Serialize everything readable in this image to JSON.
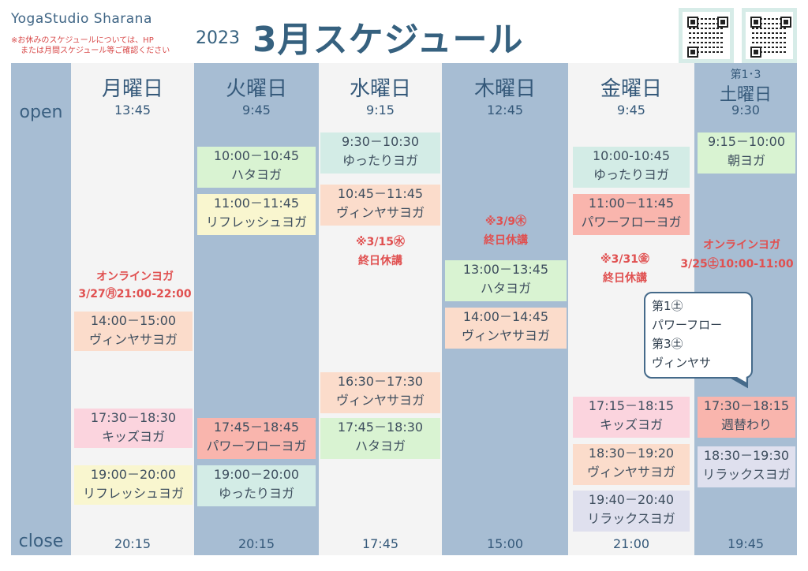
{
  "header": {
    "brand": "YogaStudio Sharana",
    "note1": "※お休みのスケジュールについては、HP",
    "note2": "または月間スケジュール等ご確認ください",
    "year": "2023",
    "title": "3月スケジュール"
  },
  "side": {
    "open": "open",
    "close": "close"
  },
  "colors": {
    "blue_col": "#a7bdd3",
    "light_col": "#f4f4f4",
    "green": "#d9f3d2",
    "mint": "#d3ece6",
    "peach": "#fbdccb",
    "pink": "#fbd4de",
    "yellow": "#f9f6cf",
    "salmon": "#f9b5ad",
    "lilac": "#dfe0ee",
    "accent_red": "#e05050",
    "title_blue": "#36617f"
  },
  "days": {
    "mon": {
      "name": "月曜日",
      "open": "13:45",
      "close": "20:15"
    },
    "tue": {
      "name": "火曜日",
      "open": "9:45",
      "close": "20:15"
    },
    "wed": {
      "name": "水曜日",
      "open": "9:15",
      "close": "17:45"
    },
    "thu": {
      "name": "木曜日",
      "open": "12:45",
      "close": "15:00"
    },
    "fri": {
      "name": "金曜日",
      "open": "9:45",
      "close": "21:00"
    },
    "sat": {
      "prefix": "第1･3",
      "name": "土曜日",
      "open": "9:30",
      "close": "19:45"
    }
  },
  "classes": {
    "mon1": {
      "time": "14:00－15:00",
      "name": "ヴィンヤサヨガ"
    },
    "mon2": {
      "time": "17:30－18:30",
      "name": "キッズヨガ"
    },
    "mon3": {
      "time": "19:00－20:00",
      "name": "リフレッシュヨガ"
    },
    "tue1": {
      "time": "10:00－10:45",
      "name": "ハタヨガ"
    },
    "tue2": {
      "time": "11:00－11:45",
      "name": "リフレッシュヨガ"
    },
    "tue3": {
      "time": "17:45－18:45",
      "name": "パワーフローヨガ"
    },
    "tue4": {
      "time": "19:00－20:00",
      "name": "ゆったりヨガ"
    },
    "wed1": {
      "time": "9:30－10:30",
      "name": "ゆったりヨガ"
    },
    "wed2": {
      "time": "10:45－11:45",
      "name": "ヴィンヤサヨガ"
    },
    "wed3": {
      "time": "16:30－17:30",
      "name": "ヴィンヤサヨガ"
    },
    "wed4": {
      "time": "17:45－18:30",
      "name": "ハタヨガ"
    },
    "thu1": {
      "time": "13:00－13:45",
      "name": "ハタヨガ"
    },
    "thu2": {
      "time": "14:00－14:45",
      "name": "ヴィンヤサヨガ"
    },
    "fri1": {
      "time": "10:00-10:45",
      "name": "ゆったりヨガ"
    },
    "fri2": {
      "time": "11:00－11:45",
      "name": "パワーフローヨガ"
    },
    "fri3": {
      "time": "17:15－18:15",
      "name": "キッズヨガ"
    },
    "fri4": {
      "time": "18:30－19:20",
      "name": "ヴィンヤサヨガ"
    },
    "fri5": {
      "time": "19:40－20:40",
      "name": "リラックスヨガ"
    },
    "sat1": {
      "time": "9:15－10:00",
      "name": "朝ヨガ"
    },
    "sat2": {
      "time": "17:30－18:15",
      "name": "週替わり"
    },
    "sat3": {
      "time": "18:30－19:30",
      "name": "リラックスヨガ"
    }
  },
  "notices": {
    "mon_online_1": "オンラインヨガ",
    "mon_online_2": "3/27㊊21:00-22:00",
    "wed_off_1": "※3/15㊌",
    "wed_off_2": "終日休講",
    "thu_off_1": "※3/9㊍",
    "thu_off_2": "終日休講",
    "fri_off_1": "※3/31㊎",
    "fri_off_2": "終日休講",
    "sat_online_1": "オンラインヨガ",
    "sat_online_2": "3/25㊏10:00-11:00"
  },
  "bubble": {
    "line1": "第1㊏",
    "line2": "パワーフロー",
    "line3": "第3㊏",
    "line4": "ヴィンヤサ"
  }
}
